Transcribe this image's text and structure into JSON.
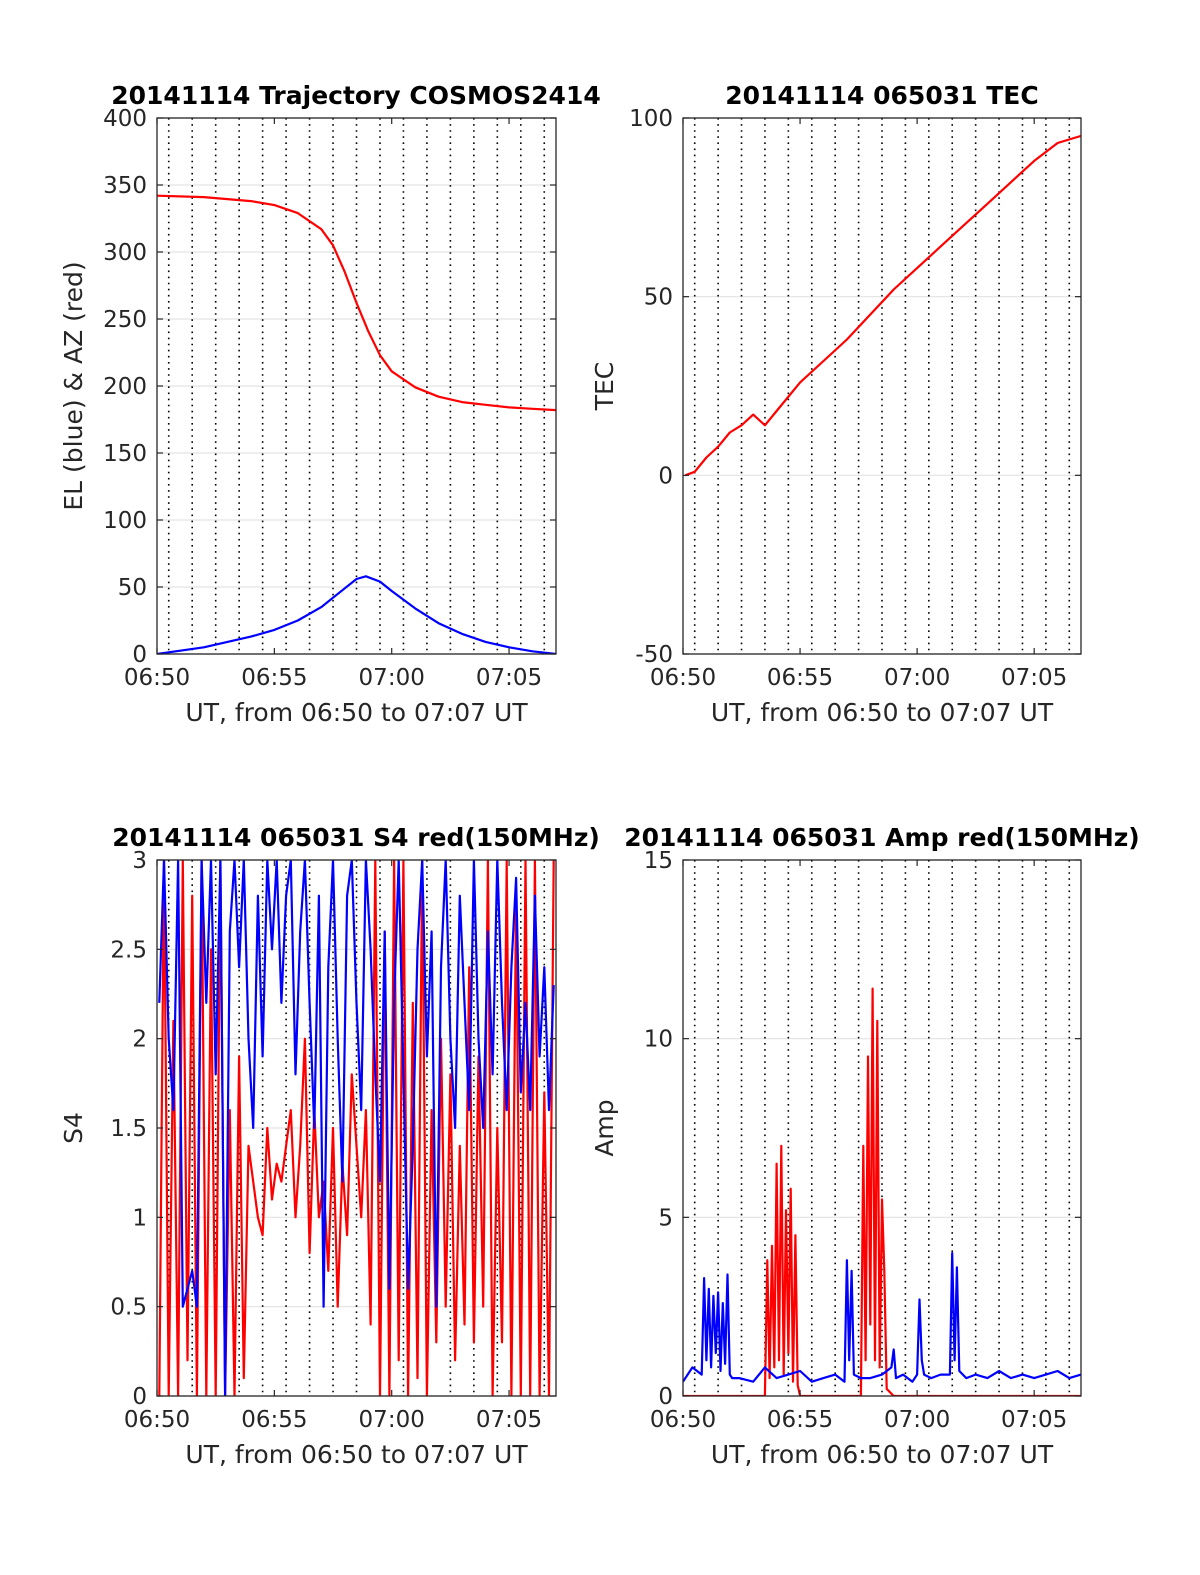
{
  "chart_data": [
    {
      "id": "trajectory",
      "type": "line",
      "title": "20141114 Trajectory COSMOS2414",
      "xlabel": "UT, from 06:50 to 07:07 UT",
      "ylabel": "EL (blue) & AZ (red)",
      "xlim": [
        0,
        17
      ],
      "ylim": [
        0,
        400
      ],
      "xticks": [
        0,
        5,
        10,
        15
      ],
      "xtick_labels": [
        "06:50",
        "06:55",
        "07:00",
        "07:05"
      ],
      "yticks": [
        0,
        50,
        100,
        150,
        200,
        250,
        300,
        350,
        400
      ],
      "ytick_labels": [
        "0",
        "50",
        "100",
        "150",
        "200",
        "250",
        "300",
        "350",
        "400"
      ],
      "grid": true,
      "series": [
        {
          "color": "#ff0000",
          "x": [
            0,
            2,
            4,
            5,
            6,
            7,
            7.5,
            8,
            8.5,
            9,
            9.5,
            10,
            11,
            12,
            13,
            14,
            15,
            16,
            17
          ],
          "y": [
            342,
            341,
            338,
            335,
            329,
            317,
            305,
            285,
            262,
            241,
            223,
            211,
            199,
            192,
            188,
            186,
            184,
            183,
            182
          ]
        },
        {
          "color": "#0000ff",
          "x": [
            0,
            2,
            4,
            5,
            6,
            7,
            7.5,
            8,
            8.5,
            8.9,
            9.5,
            10,
            11,
            12,
            13,
            14,
            15,
            16,
            17
          ],
          "y": [
            0,
            5,
            13,
            18,
            25,
            35,
            42,
            49,
            56,
            58,
            54,
            47,
            34,
            23,
            15,
            9,
            5,
            2,
            0
          ]
        }
      ]
    },
    {
      "id": "tec",
      "type": "line",
      "title": "20141114 065031 TEC",
      "xlabel": "UT, from 06:50 to 07:07 UT",
      "ylabel": "TEC",
      "xlim": [
        0,
        17
      ],
      "ylim": [
        -50,
        100
      ],
      "xticks": [
        0,
        5,
        10,
        15
      ],
      "xtick_labels": [
        "06:50",
        "06:55",
        "07:00",
        "07:05"
      ],
      "yticks": [
        -50,
        0,
        50,
        100
      ],
      "ytick_labels": [
        "-50",
        "0",
        "50",
        "100"
      ],
      "grid": true,
      "series": [
        {
          "color": "#ff0000",
          "x": [
            0.1,
            0.5,
            1,
            1.5,
            2,
            2.5,
            3,
            3.5,
            4,
            5,
            6,
            7,
            8,
            9,
            10,
            11,
            12,
            13,
            14,
            15,
            16,
            17
          ],
          "y": [
            0,
            1,
            5,
            8,
            12,
            14,
            17,
            14,
            18,
            26,
            32,
            38,
            45,
            52,
            58,
            64,
            70,
            76,
            82,
            88,
            93,
            95
          ]
        }
      ]
    },
    {
      "id": "s4",
      "type": "line",
      "title": "20141114 065031 S4 red(150MHz)",
      "xlabel": "UT, from 06:50 to 07:07 UT",
      "ylabel": "S4",
      "xlim": [
        0,
        17
      ],
      "ylim": [
        0,
        3
      ],
      "xticks": [
        0,
        5,
        10,
        15
      ],
      "xtick_labels": [
        "06:50",
        "06:55",
        "07:00",
        "07:05"
      ],
      "yticks": [
        0,
        0.5,
        1,
        1.5,
        2,
        2.5,
        3
      ],
      "ytick_labels": [
        "0",
        "0.5",
        "1",
        "1.5",
        "2",
        "2.5",
        "3"
      ],
      "grid": true,
      "series": [
        {
          "color": "#ff0000",
          "x": [
            0.1,
            0.3,
            0.5,
            0.7,
            0.9,
            1.1,
            1.3,
            1.5,
            1.7,
            1.9,
            2.1,
            2.3,
            2.5,
            2.7,
            2.9,
            3.1,
            3.3,
            3.5,
            3.7,
            3.9,
            4.1,
            4.3,
            4.5,
            4.7,
            4.9,
            5.1,
            5.3,
            5.5,
            5.7,
            5.9,
            6.1,
            6.3,
            6.5,
            6.7,
            6.9,
            7.1,
            7.3,
            7.5,
            7.7,
            7.9,
            8.1,
            8.3,
            8.5,
            8.7,
            8.9,
            9.1,
            9.3,
            9.5,
            9.7,
            9.9,
            10.1,
            10.3,
            10.5,
            10.7,
            10.9,
            11.1,
            11.3,
            11.5,
            11.7,
            11.9,
            12.1,
            12.3,
            12.5,
            12.7,
            12.9,
            13.1,
            13.3,
            13.5,
            13.7,
            13.9,
            14.1,
            14.3,
            14.5,
            14.7,
            14.9,
            15.1,
            15.3,
            15.5,
            15.7,
            15.9,
            16.1,
            16.3,
            16.5,
            16.7,
            16.9
          ],
          "y": [
            0,
            3,
            0,
            2.1,
            0,
            3,
            0.2,
            2.8,
            0,
            3,
            0,
            2.5,
            0,
            3,
            0,
            1.6,
            0,
            1.9,
            0.1,
            1.4,
            1.2,
            1.0,
            0.9,
            1.5,
            1.1,
            1.3,
            1.2,
            1.4,
            1.6,
            1.0,
            1.4,
            2.0,
            0.8,
            1.6,
            1.0,
            1.2,
            0.7,
            1.5,
            0.5,
            1.3,
            0.9,
            1.8,
            1.4,
            1.0,
            1.6,
            0.4,
            3,
            0,
            2.6,
            0,
            3,
            0.2,
            3,
            0,
            2.2,
            0.1,
            3,
            0,
            1.6,
            0.3,
            2.0,
            0.5,
            1.8,
            0.2,
            1.4,
            0.4,
            2.4,
            0.3,
            1.9,
            0.5,
            3,
            0,
            1.5,
            0.3,
            3,
            0,
            2.8,
            0,
            3,
            0,
            3,
            0,
            1.7,
            0,
            3
          ]
        },
        {
          "color": "#0000ff",
          "x": [
            0.1,
            0.3,
            0.5,
            0.7,
            0.9,
            1.1,
            1.3,
            1.5,
            1.7,
            1.9,
            2.1,
            2.3,
            2.5,
            2.7,
            2.9,
            3.1,
            3.3,
            3.5,
            3.7,
            3.9,
            4.1,
            4.3,
            4.5,
            4.7,
            4.9,
            5.1,
            5.3,
            5.5,
            5.7,
            5.9,
            6.1,
            6.3,
            6.5,
            6.7,
            6.9,
            7.1,
            7.3,
            7.5,
            7.7,
            7.9,
            8.1,
            8.3,
            8.5,
            8.7,
            8.9,
            9.1,
            9.3,
            9.5,
            9.7,
            9.9,
            10.1,
            10.3,
            10.5,
            10.7,
            10.9,
            11.1,
            11.3,
            11.5,
            11.7,
            11.9,
            12.1,
            12.3,
            12.5,
            12.7,
            12.9,
            13.1,
            13.3,
            13.5,
            13.7,
            13.9,
            14.1,
            14.3,
            14.5,
            14.7,
            14.9,
            15.1,
            15.3,
            15.5,
            15.7,
            15.9,
            16.1,
            16.3,
            16.5,
            16.7,
            16.9
          ],
          "y": [
            2.2,
            3,
            2.0,
            1.6,
            3,
            0.5,
            0.6,
            0.7,
            0.5,
            3,
            2.2,
            3,
            1.8,
            3,
            0,
            2.6,
            3,
            2.4,
            3,
            2.0,
            1.5,
            2.8,
            1.9,
            3,
            2.5,
            3,
            2.2,
            2.8,
            3,
            1.8,
            2.6,
            3,
            2.2,
            1.5,
            2.8,
            0.5,
            2.4,
            3,
            2.0,
            1.2,
            2.8,
            3,
            2.2,
            1.6,
            3,
            2.5,
            1.8,
            1.2,
            2.6,
            0.6,
            2.2,
            3,
            1.8,
            0.6,
            1.4,
            2.5,
            3,
            1.9,
            2.6,
            0.5,
            2.4,
            3,
            2.0,
            1.5,
            2.8,
            2.2,
            1.6,
            3,
            2.0,
            1.5,
            2.6,
            1.8,
            3,
            2.2,
            1.6,
            2.4,
            2.9,
            1.7,
            2.2,
            1.6,
            2.8,
            1.9,
            2.4,
            1.6,
            2.3
          ]
        }
      ]
    },
    {
      "id": "amp",
      "type": "line",
      "title": "20141114 065031 Amp red(150MHz)",
      "xlabel": "UT, from 06:50 to 07:07 UT",
      "ylabel": "Amp",
      "xlim": [
        0,
        17
      ],
      "ylim": [
        0,
        15
      ],
      "xticks": [
        0,
        5,
        10,
        15
      ],
      "xtick_labels": [
        "06:50",
        "06:55",
        "07:00",
        "07:05"
      ],
      "yticks": [
        0,
        5,
        10,
        15
      ],
      "ytick_labels": [
        "0",
        "5",
        "10",
        "15"
      ],
      "grid": true,
      "series": [
        {
          "color": "#ff0000",
          "x": [
            0,
            3.5,
            3.6,
            3.7,
            3.8,
            3.9,
            4.0,
            4.1,
            4.2,
            4.3,
            4.4,
            4.5,
            4.6,
            4.7,
            4.8,
            4.9,
            5.0,
            5.5,
            7.6,
            7.7,
            7.8,
            7.9,
            8.0,
            8.1,
            8.2,
            8.3,
            8.4,
            8.5,
            8.6,
            8.7,
            9.0,
            17
          ],
          "y": [
            0,
            0,
            3.8,
            0.5,
            4.2,
            0.8,
            6.5,
            1.0,
            7.0,
            0.6,
            5.2,
            1.2,
            5.8,
            0.4,
            4.5,
            0.3,
            0,
            0,
            0,
            7.0,
            1.0,
            9.5,
            2.0,
            11.4,
            1.0,
            10.5,
            0.8,
            5.5,
            3.5,
            0.2,
            0,
            0
          ]
        },
        {
          "color": "#0000ff",
          "x": [
            0,
            0.4,
            0.8,
            0.9,
            1.0,
            1.1,
            1.2,
            1.3,
            1.4,
            1.5,
            1.6,
            1.7,
            1.8,
            1.9,
            2.0,
            2.1,
            2.4,
            3.0,
            3.5,
            4.0,
            4.5,
            5.0,
            5.5,
            6.0,
            6.5,
            6.9,
            7.0,
            7.1,
            7.2,
            7.3,
            7.6,
            8.0,
            8.5,
            8.9,
            9.0,
            9.1,
            9.4,
            9.8,
            10.0,
            10.1,
            10.2,
            10.3,
            10.6,
            11.0,
            11.4,
            11.5,
            11.6,
            11.7,
            11.8,
            12.1,
            12.5,
            13.0,
            13.5,
            14.0,
            14.5,
            15.0,
            15.5,
            16.0,
            16.5,
            17
          ],
          "y": [
            0.4,
            0.8,
            0.6,
            3.3,
            1.0,
            3.0,
            0.8,
            2.8,
            1.2,
            2.9,
            0.7,
            2.6,
            0.9,
            3.4,
            0.6,
            0.5,
            0.5,
            0.4,
            0.8,
            0.5,
            0.6,
            0.7,
            0.4,
            0.5,
            0.6,
            0.4,
            3.8,
            1.0,
            3.5,
            0.6,
            0.5,
            0.5,
            0.6,
            0.8,
            1.3,
            0.5,
            0.6,
            0.4,
            0.6,
            2.7,
            1.0,
            0.6,
            0.5,
            0.6,
            0.6,
            4.0,
            1.0,
            3.6,
            0.7,
            0.5,
            0.6,
            0.5,
            0.7,
            0.5,
            0.6,
            0.5,
            0.6,
            0.7,
            0.5,
            0.6
          ]
        }
      ]
    }
  ]
}
